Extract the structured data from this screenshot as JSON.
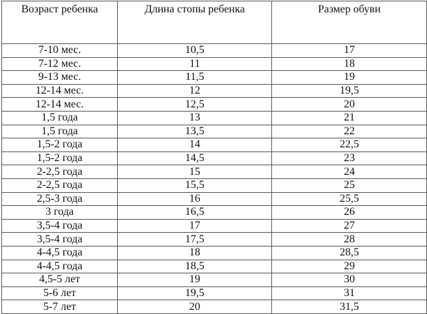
{
  "table": {
    "headers": [
      "Возраст ребенка",
      "Длина стопы ребенка",
      "Размер обуви"
    ],
    "rows": [
      [
        "7-10 мес.",
        "10,5",
        "17"
      ],
      [
        "7-12 мес.",
        "11",
        "18"
      ],
      [
        "9-13 мес.",
        "11,5",
        "19"
      ],
      [
        "12-14 мес.",
        "12",
        "19,5"
      ],
      [
        "12-14 мес.",
        "12,5",
        "20"
      ],
      [
        "1,5 года",
        "13",
        "21"
      ],
      [
        "1,5 года",
        "13,5",
        "22"
      ],
      [
        "1,5-2 года",
        "14",
        "22,5"
      ],
      [
        "1,5-2 года",
        "14,5",
        "23"
      ],
      [
        "2-2,5 года",
        "15",
        "24"
      ],
      [
        "2-2,5 года",
        "15,5",
        "25"
      ],
      [
        "2,5-3 года",
        "16",
        "25,5"
      ],
      [
        "3 года",
        "16,5",
        "26"
      ],
      [
        "3,5-4 года",
        "17",
        "27"
      ],
      [
        "3,5-4 года",
        "17,5",
        "28"
      ],
      [
        "4-4,5 года",
        "18",
        "28,5"
      ],
      [
        "4-4,5 года",
        "18,5",
        "29"
      ],
      [
        "4,5-5 лет",
        "19",
        "30"
      ],
      [
        "5-6 лет",
        "19,5",
        "31"
      ],
      [
        "5-7 лет",
        "20",
        "31,5"
      ]
    ]
  }
}
